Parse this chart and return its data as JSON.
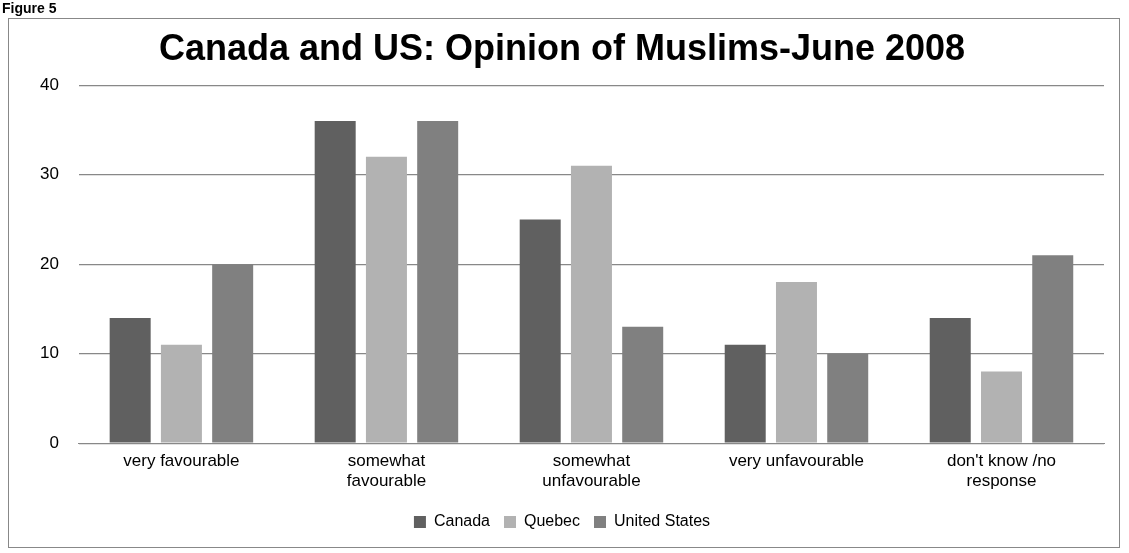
{
  "chart_data": {
    "type": "bar",
    "title": "Canada and US: Opinion of Muslims-June 2008",
    "annotations": [
      "Figure 5"
    ],
    "categories": [
      "very favourable",
      "somewhat favourable",
      "somewhat unfavourable",
      "very unfavourable",
      "don't know /no response"
    ],
    "series": [
      {
        "name": "Canada",
        "color": "#606060",
        "values": [
          14,
          36,
          25,
          11,
          14
        ]
      },
      {
        "name": "Quebec",
        "color": "#b2b2b2",
        "values": [
          11,
          32,
          31,
          18,
          8
        ]
      },
      {
        "name": "United States",
        "color": "#808080",
        "values": [
          20,
          36,
          13,
          10,
          21
        ]
      }
    ],
    "ylim": [
      0,
      40
    ],
    "yticks": [
      0,
      10,
      20,
      30,
      40
    ],
    "grid": "y",
    "legend": "bottom"
  }
}
